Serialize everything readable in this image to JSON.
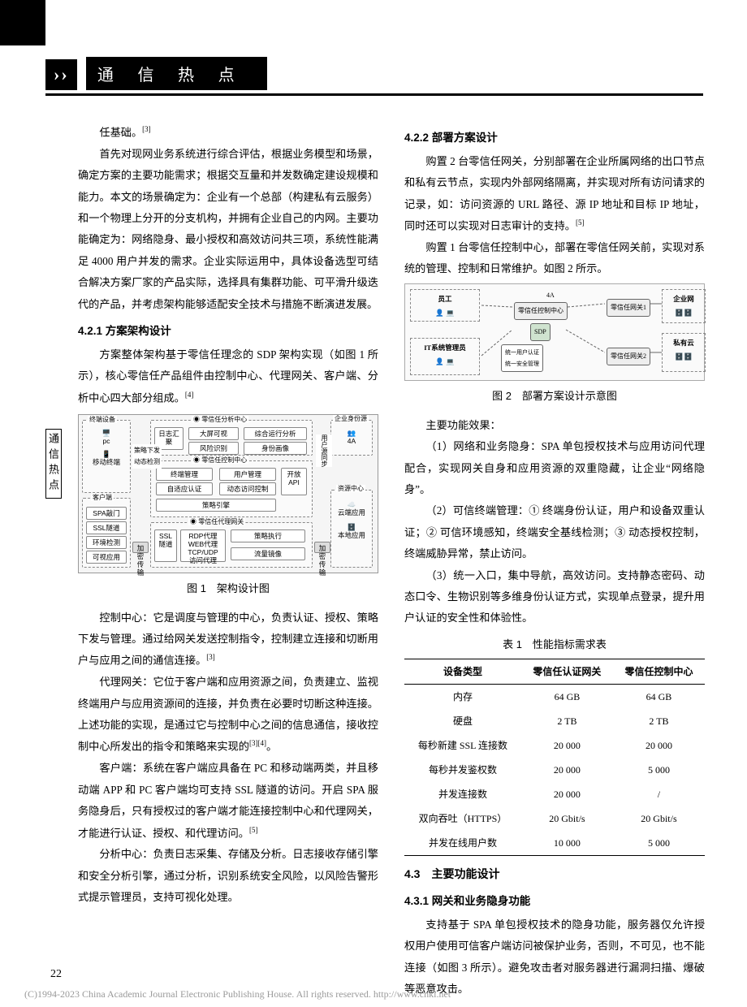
{
  "header": {
    "chevrons": "››",
    "title": "通 信 热 点"
  },
  "sideTab": "通信热点",
  "pageNumber": "22",
  "footer": "(C)1994-2023 China Academic Journal Electronic Publishing House. All rights reserved.    http://www.cnki.net",
  "leftCol": {
    "p1": "任基础。",
    "p1ref": "[3]",
    "p2": "首先对现网业务系统进行综合评估，根据业务模型和场景，确定方案的主要功能需求；根据交互量和并发数确定建设规模和能力。本文的场景确定为：企业有一个总部（构建私有云服务）和一个物理上分开的分支机构，并拥有企业自己的内网。主要功能确定为：网络隐身、最小授权和高效访问共三项，系统性能满足 4000 用户并发的需求。企业实际运用中，具体设备选型可结合解决方案厂家的产品实际，选择具有集群功能、可平滑升级迭代的产品，并考虑架构能够适配安全技术与措施不断演进发展。",
    "h421": "4.2.1 方案架构设计",
    "p3": "方案整体架构基于零信任理念的 SDP 架构实现（如图 1 所示），核心零信任产品组件由控制中心、代理网关、客户端、分析中心四大部分组成。",
    "p3ref": "[4]",
    "fig1Caption": "图 1　架构设计图",
    "p4": "控制中心：它是调度与管理的中心，负责认证、授权、策略下发与管理。通过给网关发送控制指令，控制建立连接和切断用户与应用之间的通信连接。",
    "p4ref": "[3]",
    "p5": "代理网关：它位于客户端和应用资源之间，负责建立、监视终端用户与应用资源间的连接，并负责在必要时切断这种连接。上述功能的实现，是通过它与控制中心之间的信息通信，接收控制中心所发出的指令和策略来实现的",
    "p5ref": "[3][4]",
    "p5b": "。",
    "p6": "客户端：系统在客户端应具备在 PC 和移动端两类，并且移动端 APP 和 PC 客户端均可支持 SSL 隧道的访问。开启 SPA 服务隐身后，只有授权过的客户端才能连接控制中心和代理网关，才能进行认证、授权、和代理访问。",
    "p6ref": "[5]",
    "p7": "分析中心：负责日志采集、存储及分析。日志接收存储引擎和安全分析引擎，通过分析，识别系统安全风险，以风险告警形式提示管理员，支持可视化处理。"
  },
  "rightCol": {
    "h422": "4.2.2 部署方案设计",
    "p1": "购置 2 台零信任网关，分别部署在企业所属网络的出口节点和私有云节点，实现内外部网络隔离，并实现对所有访问请求的记录，如：访问资源的 URL 路径、源 IP 地址和目标 IP 地址，同时还可以实现对日志审计的支持。",
    "p1ref": "[5]",
    "p2": "购置 1 台零信任控制中心，部署在零信任网关前，实现对系统的管理、控制和日常维护。如图 2 所示。",
    "fig2Caption": "图 2　部署方案设计示意图",
    "p3a": "主要功能效果：",
    "p3b": "（1）网络和业务隐身：SPA 单包授权技术与应用访问代理配合，实现网关自身和应用资源的双重隐藏，让企业“网络隐身”。",
    "p3c": "（2）可信终端管理：① 终端身份认证，用户和设备双重认证；② 可信环境感知，终端安全基线检测；③ 动态授权控制，终端威胁异常，禁止访问。",
    "p3d": "（3）统一入口，集中导航，高效访问。支持静态密码、动态口令、生物识别等多维身份认证方式，实现单点登录，提升用户认证的安全性和体验性。",
    "tbl1Caption": "表 1　性能指标需求表",
    "h43": "4.3　主要功能设计",
    "h431": "4.3.1 网关和业务隐身功能",
    "p4": "支持基于 SPA 单包授权技术的隐身功能，服务器仅允许授权用户使用可信客户端访问被保护业务，否则，不可见，也不能连接（如图 3 所示）。避免攻击者对服务器进行漏洞扫描、爆破等恶意攻击。"
  },
  "fig1": {
    "title_topLeft": "终端设备",
    "title_topMidL": "零信任分析中心",
    "title_topRight": "企业身份源",
    "boxes": {
      "pc": "pc",
      "mobile": "移动终端",
      "customer": "客户端",
      "spa": "SPA敲门",
      "ssl": "SSL隧道",
      "env": "环境检测",
      "vis": "可视应用",
      "logSum": "日志汇聚",
      "bigScreen": "大屏可视",
      "analysis": "综合运行分析",
      "risk": "风险识别",
      "portrait": "身份画像",
      "ctrlCenter": "零信任控制中心",
      "termMgmt": "终端管理",
      "userMgmt": "用户管理",
      "selfAdapt": "自适应认证",
      "dynCtrl": "动态访问控制",
      "openApi": "开放API",
      "policy": "策略引擎",
      "gateway": "零信任代理网关",
      "sslTun": "SSL隧道",
      "rdp": "RDP代理\nWEB代理\nTCP/UDP\n访问代理",
      "policyExec": "策略执行",
      "flowMirror": "流量镜像",
      "resCenter": "资源中心",
      "cloud": "云端应用",
      "local": "本地应用",
      "userSync": "用户源同步",
      "fourA": "4A",
      "encTrans": "加密传输",
      "policyDown": "策略下发",
      "authCtrl": "动态检测"
    }
  },
  "fig2": {
    "staff": "员工",
    "itAdmin": "IT系统管理员",
    "ctrl": "零信任控制中心",
    "sdp": "SDP",
    "gw1": "零信任网关1",
    "gw2": "零信任网关2",
    "corpNet": "企业网",
    "privCloud": "私有云",
    "fourA": "4A",
    "note1": "统一用户认证\n统一安全管理"
  },
  "perfTable": {
    "headers": [
      "设备类型",
      "零信任认证网关",
      "零信任控制中心"
    ],
    "rows": [
      [
        "内存",
        "64 GB",
        "64 GB"
      ],
      [
        "硬盘",
        "2 TB",
        "2 TB"
      ],
      [
        "每秒新建 SSL 连接数",
        "20 000",
        "20 000"
      ],
      [
        "每秒并发鉴权数",
        "20 000",
        "5 000"
      ],
      [
        "并发连接数",
        "20 000",
        "/"
      ],
      [
        "双向吞吐（HTTPS）",
        "20 Gbit/s",
        "20 Gbit/s"
      ],
      [
        "并发在线用户数",
        "10 000",
        "5 000"
      ]
    ]
  },
  "colors": {
    "black": "#000000",
    "gray": "#888888",
    "lightbg": "#f5f5f5",
    "footerGray": "#9a9a9a"
  }
}
